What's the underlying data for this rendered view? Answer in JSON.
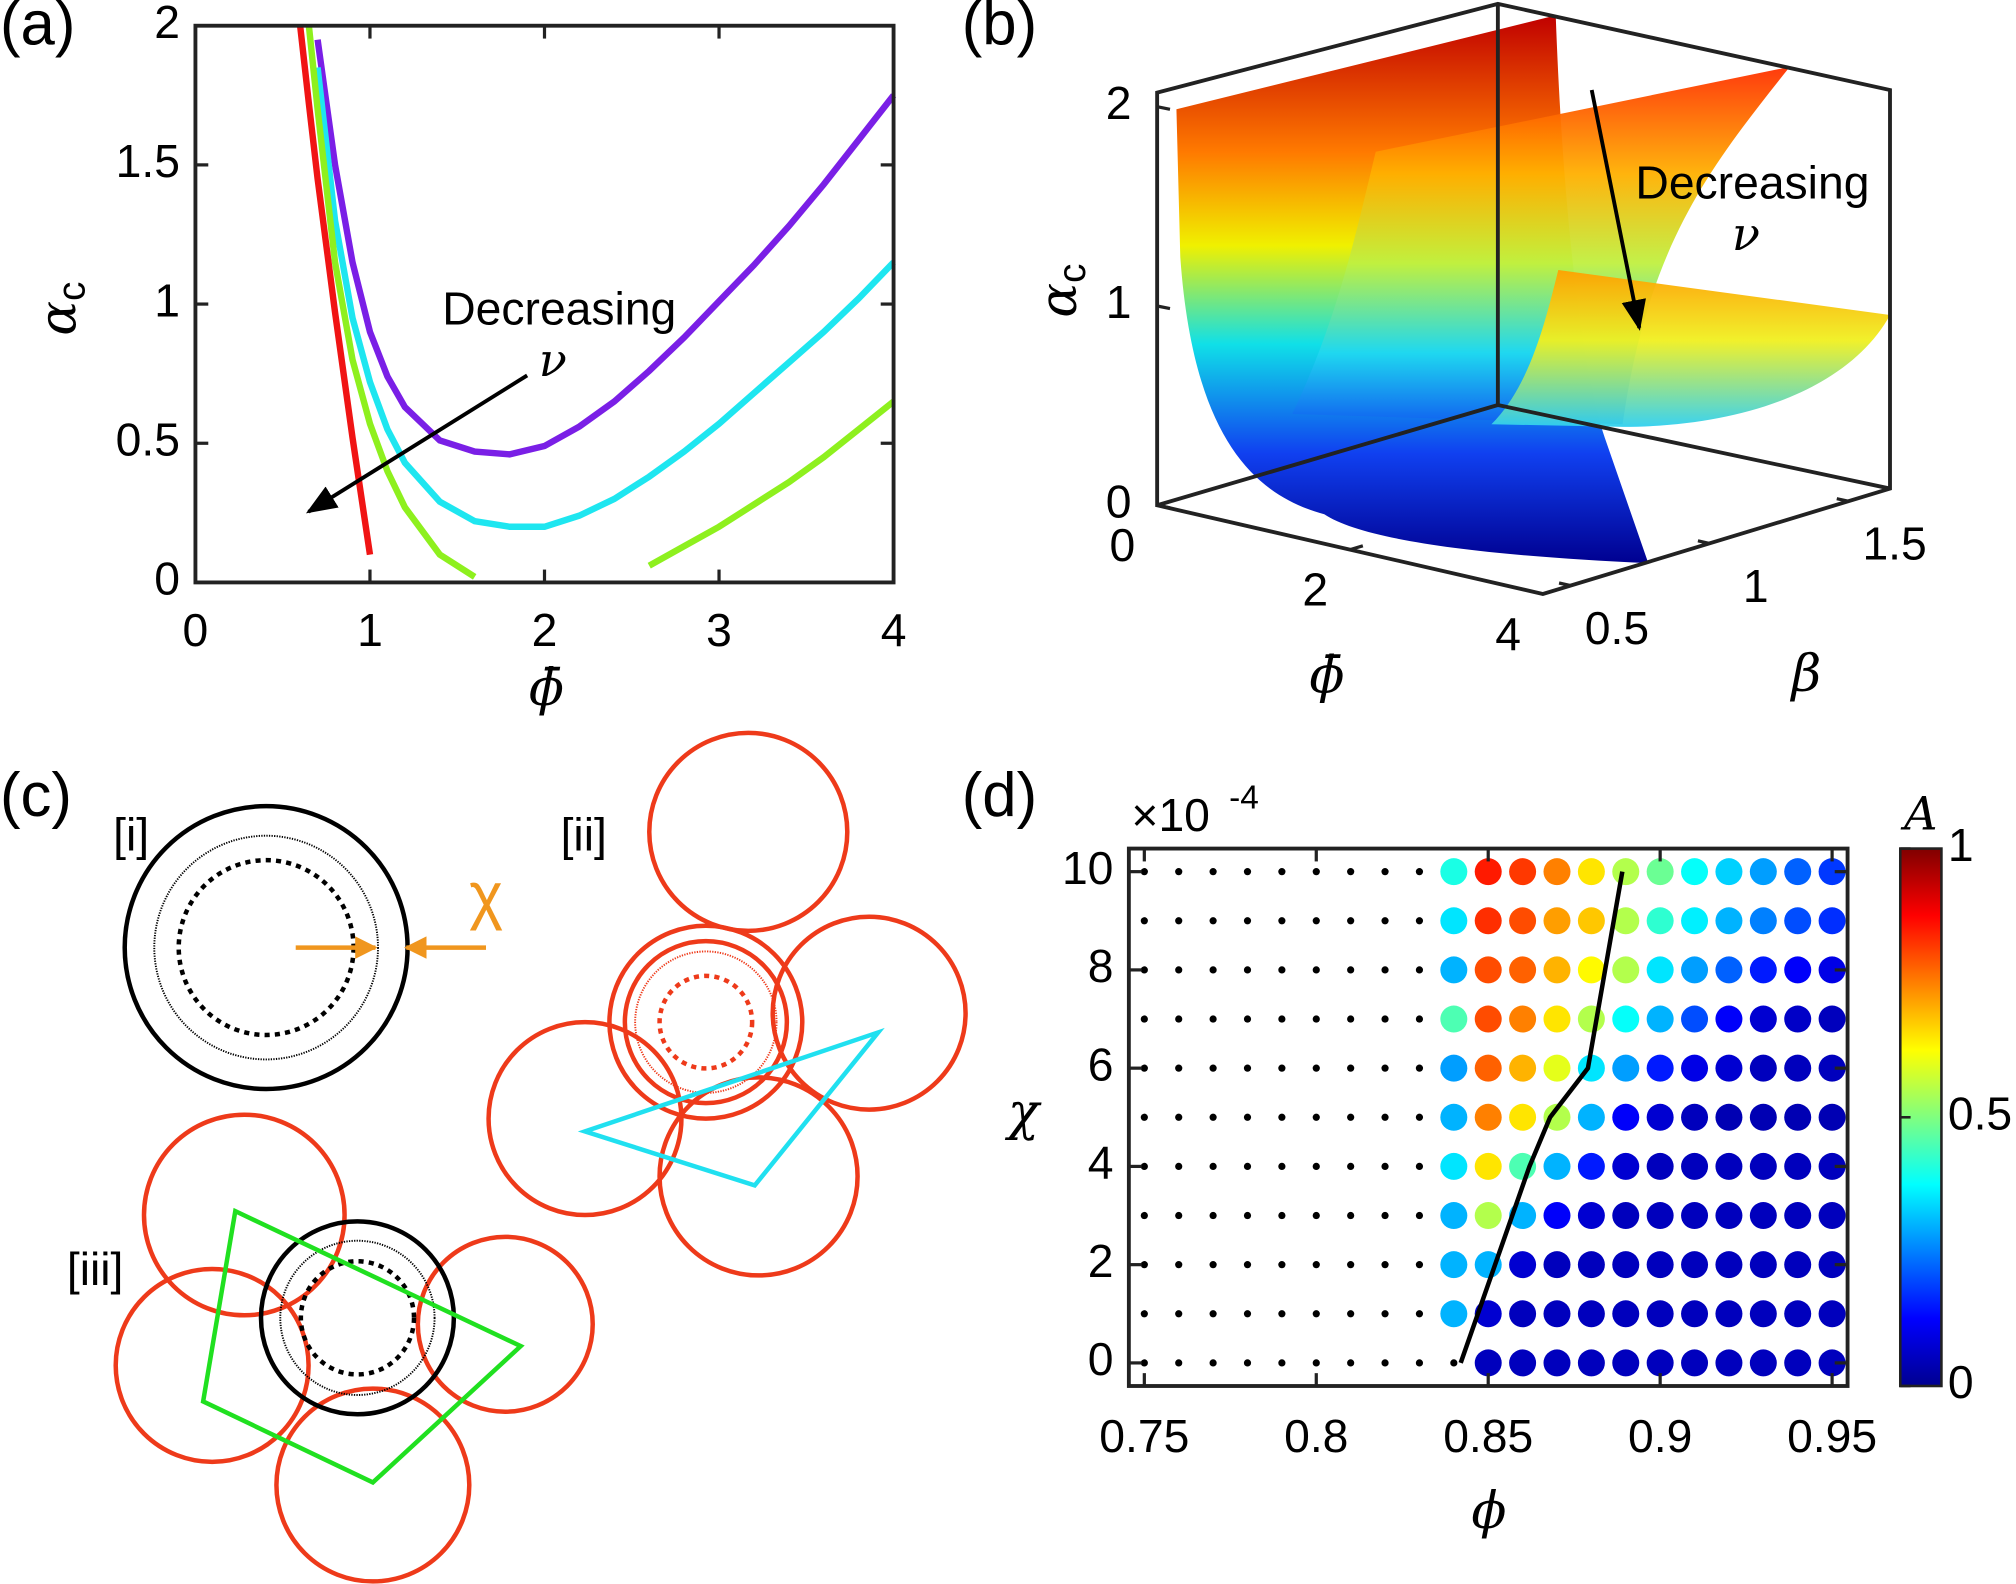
{
  "chart_data": [
    {
      "type": "line",
      "panel_label": "(a)",
      "xlabel": "ϕ̄",
      "ylabel": {
        "symbol": "α",
        "subscript": "c"
      },
      "xlim": [
        0,
        4
      ],
      "ylim": [
        0,
        2
      ],
      "xticks": [
        0,
        1,
        2,
        3,
        4
      ],
      "yticks": [
        0,
        0.5,
        1,
        1.5,
        2
      ],
      "x": [
        0.6,
        0.65,
        0.7,
        0.8,
        0.9,
        1.0,
        1.1,
        1.2,
        1.4,
        1.6,
        1.8,
        2.0,
        2.2,
        2.4,
        2.6,
        2.8,
        3.0,
        3.2,
        3.4,
        3.6,
        3.8,
        4.0
      ],
      "series": [
        {
          "color": "#7a1fe6",
          "values": [
            null,
            null,
            1.95,
            1.5,
            1.15,
            0.9,
            0.74,
            0.63,
            0.51,
            0.47,
            0.46,
            0.49,
            0.56,
            0.65,
            0.76,
            0.88,
            1.01,
            1.14,
            1.28,
            1.43,
            1.59,
            1.75
          ]
        },
        {
          "color": "#1ee6f0",
          "values": [
            null,
            null,
            1.85,
            1.3,
            0.95,
            0.72,
            0.55,
            0.43,
            0.29,
            0.22,
            0.2,
            0.2,
            0.24,
            0.3,
            0.38,
            0.47,
            0.57,
            0.68,
            0.79,
            0.9,
            1.02,
            1.15
          ]
        },
        {
          "color": "#8ef01e",
          "values": [
            null,
            2.0,
            1.7,
            1.15,
            0.8,
            0.57,
            0.4,
            0.27,
            0.1,
            0.02,
            null,
            null,
            null,
            null,
            0.06,
            0.13,
            0.2,
            0.28,
            0.36,
            0.45,
            0.55,
            0.65
          ]
        },
        {
          "color": "#f01414",
          "values": [
            2.0,
            1.72,
            1.45,
            0.97,
            0.52,
            0.1,
            null,
            null,
            null,
            null,
            null,
            null,
            null,
            null,
            null,
            null,
            null,
            null,
            null,
            null,
            null,
            null
          ]
        }
      ],
      "annotation": {
        "text": "Decreasing",
        "symbol": "ν"
      }
    },
    {
      "type": "surface3d",
      "panel_label": "(b)",
      "xlabel": "ϕ̄",
      "ylabel": "β",
      "zlabel": {
        "symbol": "α",
        "subscript": "c"
      },
      "xlim": [
        0,
        4
      ],
      "ylim": [
        0.4,
        1.65
      ],
      "zlim": [
        0,
        2.08
      ],
      "xticks": [
        0,
        2,
        4
      ],
      "yticks": [
        0.5,
        1,
        1.5
      ],
      "zticks": [
        0,
        1,
        2
      ],
      "annotation": {
        "text": "Decreasing",
        "symbol": "ν"
      }
    },
    {
      "type": "scatter",
      "panel_label": "(d)",
      "xlabel": "ϕ",
      "ylabel": "χ",
      "y_multiplier": {
        "base": "×10",
        "exponent": "-4"
      },
      "xlim": [
        0.7455,
        0.9545
      ],
      "ylim": [
        -0.47,
        10.47
      ],
      "xticks": [
        0.75,
        0.8,
        0.85,
        0.9,
        0.95
      ],
      "yticks": [
        0,
        2,
        4,
        6,
        8,
        10
      ],
      "x": [
        0.75,
        0.76,
        0.77,
        0.78,
        0.79,
        0.8,
        0.81,
        0.82,
        0.83,
        0.84,
        0.85,
        0.86,
        0.87,
        0.88,
        0.89,
        0.9,
        0.91,
        0.92,
        0.93,
        0.94,
        0.95
      ],
      "y": [
        0,
        1,
        2,
        3,
        4,
        5,
        6,
        7,
        8,
        9,
        10
      ],
      "values": [
        [
          null,
          null,
          null,
          null,
          null,
          null,
          null,
          null,
          null,
          null,
          0.06,
          0.06,
          0.06,
          0.06,
          0.06,
          0.06,
          0.06,
          0.06,
          0.06,
          0.06,
          0.06
        ],
        [
          null,
          null,
          null,
          null,
          null,
          null,
          null,
          null,
          null,
          0.3,
          0.08,
          0.06,
          0.06,
          0.06,
          0.06,
          0.06,
          0.06,
          0.06,
          0.06,
          0.06,
          0.06
        ],
        [
          null,
          null,
          null,
          null,
          null,
          null,
          null,
          null,
          null,
          0.3,
          0.3,
          0.08,
          0.06,
          0.06,
          0.06,
          0.06,
          0.06,
          0.06,
          0.06,
          0.06,
          0.06
        ],
        [
          null,
          null,
          null,
          null,
          null,
          null,
          null,
          null,
          null,
          0.3,
          0.55,
          0.3,
          0.12,
          0.08,
          0.06,
          0.06,
          0.06,
          0.06,
          0.06,
          0.06,
          0.06
        ],
        [
          null,
          null,
          null,
          null,
          null,
          null,
          null,
          null,
          null,
          0.35,
          0.65,
          0.45,
          0.3,
          0.15,
          0.08,
          0.06,
          0.06,
          0.06,
          0.06,
          0.06,
          0.06
        ],
        [
          null,
          null,
          null,
          null,
          null,
          null,
          null,
          null,
          null,
          0.3,
          0.75,
          0.65,
          0.55,
          0.3,
          0.12,
          0.08,
          0.06,
          0.05,
          0.05,
          0.05,
          0.05
        ],
        [
          null,
          null,
          null,
          null,
          null,
          null,
          null,
          null,
          null,
          0.28,
          0.78,
          0.7,
          0.6,
          0.35,
          0.28,
          0.15,
          0.1,
          0.08,
          0.06,
          0.06,
          0.06
        ],
        [
          null,
          null,
          null,
          null,
          null,
          null,
          null,
          null,
          null,
          0.45,
          0.8,
          0.75,
          0.65,
          0.55,
          0.38,
          0.3,
          0.2,
          0.12,
          0.08,
          0.07,
          0.06
        ],
        [
          null,
          null,
          null,
          null,
          null,
          null,
          null,
          null,
          null,
          0.3,
          0.8,
          0.78,
          0.7,
          0.63,
          0.55,
          0.35,
          0.28,
          0.22,
          0.15,
          0.12,
          0.1
        ],
        [
          null,
          null,
          null,
          null,
          null,
          null,
          null,
          null,
          null,
          0.35,
          0.83,
          0.8,
          0.72,
          0.68,
          0.55,
          0.42,
          0.36,
          0.3,
          0.25,
          0.2,
          0.17
        ],
        [
          null,
          null,
          null,
          null,
          null,
          null,
          null,
          null,
          null,
          0.4,
          0.85,
          0.82,
          0.75,
          0.65,
          0.55,
          0.48,
          0.38,
          0.33,
          0.28,
          0.22,
          0.18
        ]
      ],
      "line": {
        "x": [
          0.842,
          0.852,
          0.862,
          0.868,
          0.879,
          0.884,
          0.889
        ],
        "y": [
          0,
          2,
          4,
          5,
          6,
          8,
          10
        ]
      },
      "colorbar": {
        "label": "A",
        "lim": [
          0,
          1
        ],
        "ticks": [
          0,
          0.5,
          1
        ]
      }
    }
  ],
  "diagram": {
    "panel_label": "(c)",
    "labels": [
      "[i]",
      "[ii]",
      "[iii]"
    ],
    "symbol": "χ"
  }
}
